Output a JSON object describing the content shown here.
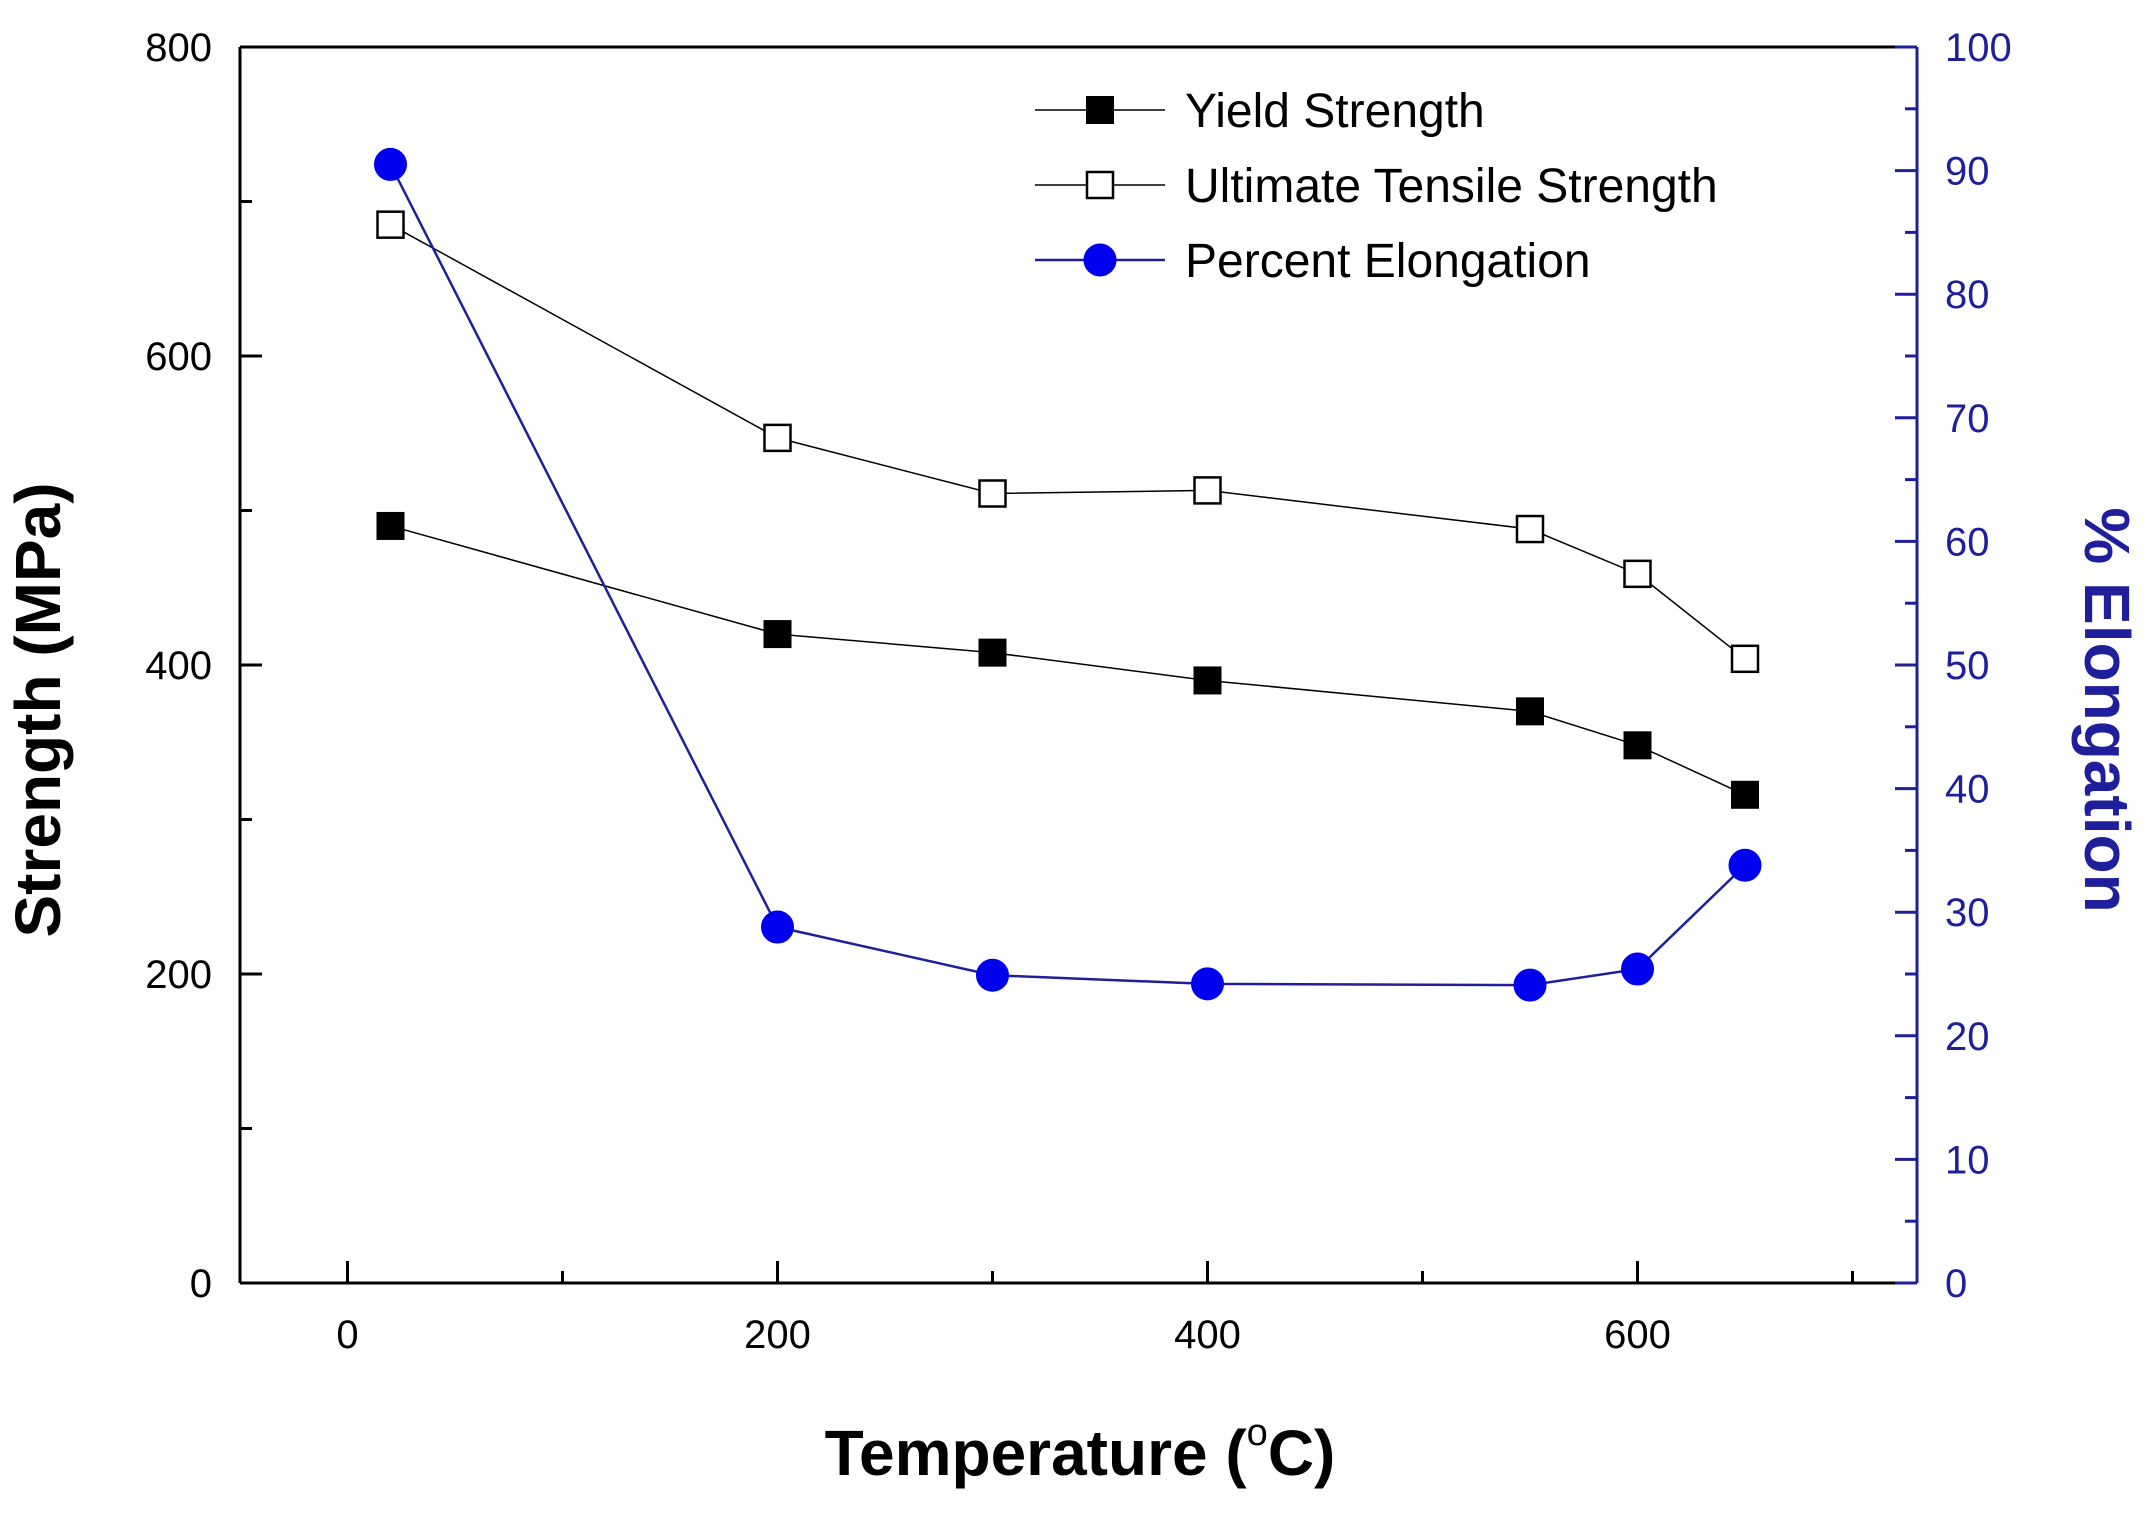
{
  "chart_data": {
    "type": "line",
    "title": "",
    "xlabel": "Temperature",
    "xlabel_unit": "C",
    "xlabel_degree": "o",
    "ylabel": "Strength (MPa)",
    "y2label": "% Elongation",
    "xlim": [
      -50,
      730
    ],
    "ylim": [
      0,
      800
    ],
    "y2lim": [
      0,
      100
    ],
    "xticks": [
      0,
      200,
      400,
      600
    ],
    "yticks": [
      0,
      200,
      400,
      600,
      800
    ],
    "y2ticks": [
      0,
      10,
      20,
      30,
      40,
      50,
      60,
      70,
      80,
      90,
      100
    ],
    "legend_position": "top-right",
    "x": [
      20,
      200,
      300,
      400,
      550,
      600,
      650
    ],
    "series": [
      {
        "name": "Yield Strength",
        "axis": "left",
        "marker": "filled-square",
        "color": "#000000",
        "values": [
          490,
          420,
          408,
          390,
          370,
          348,
          316
        ]
      },
      {
        "name": "Ultimate Tensile Strength",
        "axis": "left",
        "marker": "open-square",
        "color": "#000000",
        "values": [
          685,
          547,
          511,
          513,
          488,
          459,
          404
        ]
      },
      {
        "name": "Percent Elongation",
        "axis": "right",
        "marker": "filled-circle",
        "color": "#0000ee",
        "values": [
          90.5,
          28.8,
          24.9,
          24.2,
          24.1,
          25.4,
          33.8
        ]
      }
    ],
    "colors": {
      "axis": "#000000",
      "right_axis": "#1f1f9c",
      "elongation": "#0000ee"
    }
  }
}
